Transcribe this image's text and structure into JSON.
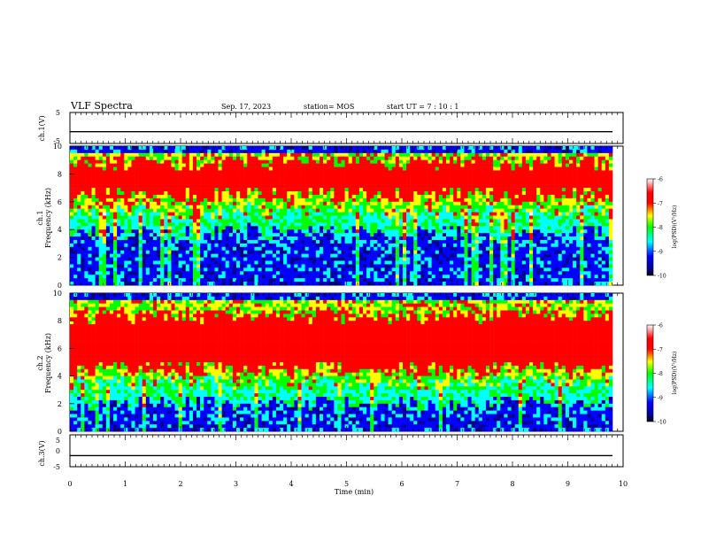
{
  "header": {
    "title": "VLF Spectra",
    "date": "Sep. 17, 2023",
    "station": "station= MOS",
    "start": "start  UT =   7 : 10 : 1"
  },
  "chart_data": [
    {
      "type": "line",
      "panel": "ch1-waveform",
      "ylabel": "ch.1(V)",
      "ylim": [
        -5,
        5
      ],
      "y_ticks": [
        "5",
        "-5"
      ],
      "xlim": [
        0,
        10
      ],
      "series": [
        {
          "values_description_constant": -1.2
        }
      ]
    },
    {
      "type": "heatmap",
      "panel": "ch1-spectrogram",
      "ylabel": "ch.1",
      "ylabel2": "Frequency (kHz)",
      "ylim": [
        0,
        10
      ],
      "y_ticks": [
        "0",
        "2",
        "4",
        "6",
        "8",
        "10"
      ],
      "xlim": [
        0,
        9.85
      ],
      "colorbar": {
        "label": "log(PSD)(V²/Hz)",
        "range": [
          -10,
          -6
        ],
        "ticks": [
          "-6",
          "-7",
          "-8",
          "-9",
          "-10"
        ]
      },
      "emission_band_khz": [
        5.3,
        9.5
      ],
      "peak_band_khz": [
        6.5,
        8.8
      ]
    },
    {
      "type": "heatmap",
      "panel": "ch2-spectrogram",
      "ylabel": "ch.2",
      "ylabel2": "Frequency (kHz)",
      "ylim": [
        0,
        10
      ],
      "y_ticks": [
        "0",
        "2",
        "4",
        "6",
        "8",
        "10"
      ],
      "xlim": [
        0,
        9.85
      ],
      "colorbar": {
        "label": "log(PSD)(V²/Hz)",
        "range": [
          -10,
          -6
        ],
        "ticks": [
          "-6",
          "-7",
          "-8",
          "-9",
          "-10"
        ]
      },
      "emission_band_khz": [
        3.5,
        9.5
      ],
      "peak_band_khz": [
        4.5,
        8.3
      ]
    },
    {
      "type": "line",
      "panel": "ch3-waveform",
      "ylabel": "ch.3(V)",
      "ylim": [
        -5,
        5
      ],
      "y_ticks": [
        "5",
        "0",
        "-5"
      ],
      "xlim": [
        0,
        10
      ],
      "series": [
        {
          "values_description_constant": -1.5
        }
      ]
    }
  ],
  "x_axis": {
    "label": "Time (min)",
    "ticks": [
      "0",
      "1",
      "2",
      "3",
      "4",
      "5",
      "6",
      "7",
      "8",
      "9",
      "10"
    ]
  },
  "colors": {
    "colormap": [
      "#000000",
      "#00008c",
      "#0000ff",
      "#00ffff",
      "#00ff00",
      "#ffff00",
      "#ff0000",
      "#ffffff"
    ]
  }
}
